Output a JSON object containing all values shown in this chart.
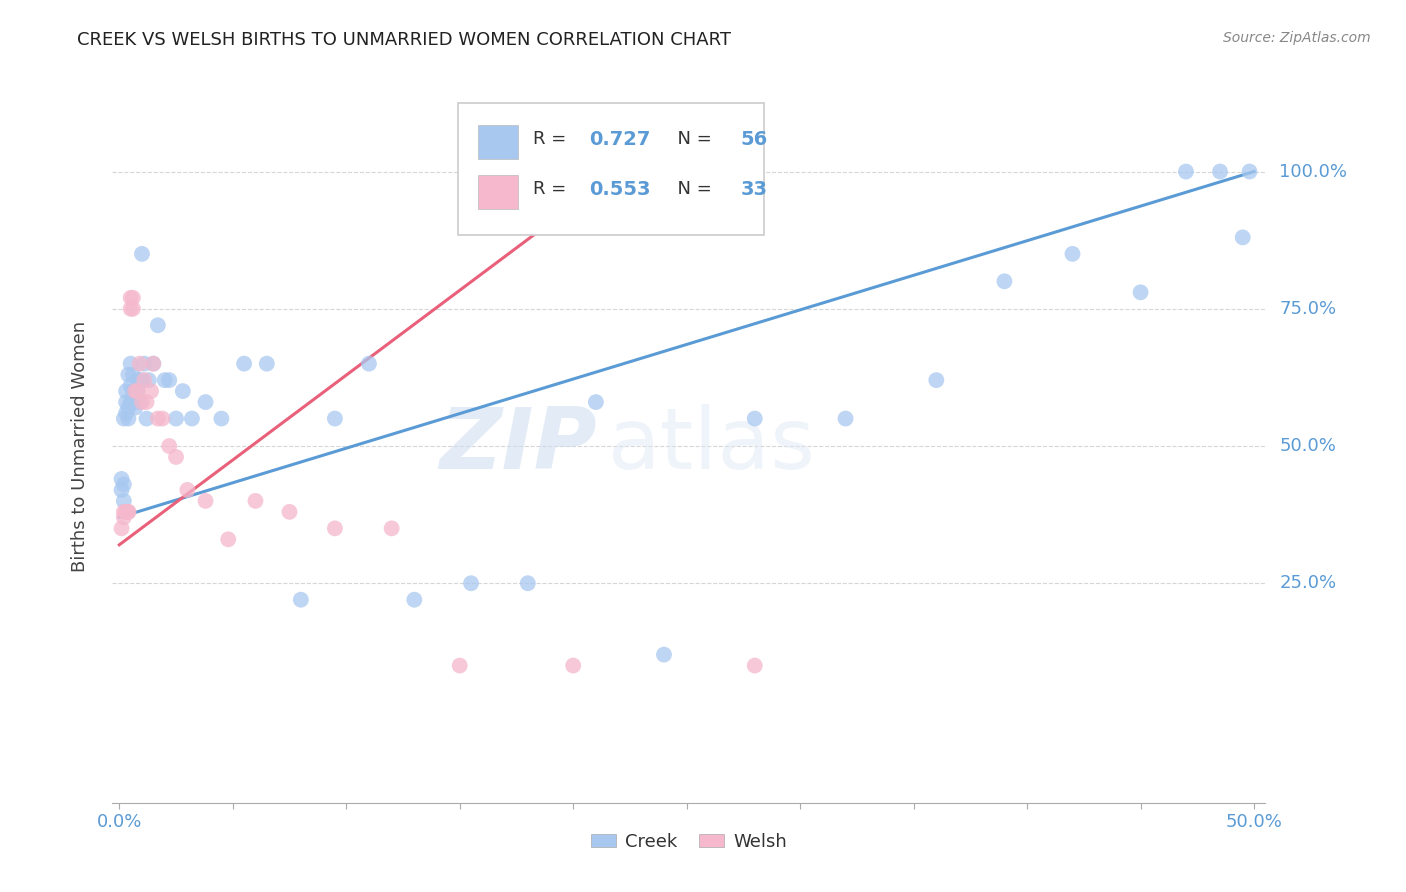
{
  "title": "CREEK VS WELSH BIRTHS TO UNMARRIED WOMEN CORRELATION CHART",
  "source": "Source: ZipAtlas.com",
  "ylabel": "Births to Unmarried Women",
  "creek_color": "#a8c8f0",
  "welsh_color": "#f5b8cc",
  "creek_line_color": "#5b9bd5",
  "welsh_line_color": "#e8607a",
  "creek_R": 0.727,
  "creek_N": 56,
  "welsh_R": 0.553,
  "welsh_N": 33,
  "watermark_zip": "ZIP",
  "watermark_atlas": "atlas",
  "ytick_labels": [
    "25.0%",
    "50.0%",
    "75.0%",
    "100.0%"
  ],
  "ytick_vals": [
    0.25,
    0.5,
    0.75,
    1.0
  ],
  "xlim": [
    0.0,
    0.5
  ],
  "ylim": [
    -0.15,
    1.15
  ],
  "creek_x": [
    0.001,
    0.001,
    0.002,
    0.002,
    0.002,
    0.003,
    0.003,
    0.003,
    0.004,
    0.004,
    0.004,
    0.005,
    0.005,
    0.005,
    0.006,
    0.006,
    0.006,
    0.007,
    0.007,
    0.008,
    0.008,
    0.009,
    0.01,
    0.01,
    0.011,
    0.012,
    0.013,
    0.015,
    0.017,
    0.02,
    0.022,
    0.025,
    0.028,
    0.032,
    0.038,
    0.045,
    0.055,
    0.065,
    0.08,
    0.095,
    0.11,
    0.13,
    0.155,
    0.18,
    0.21,
    0.24,
    0.28,
    0.32,
    0.36,
    0.39,
    0.42,
    0.45,
    0.47,
    0.485,
    0.495,
    0.498
  ],
  "creek_y": [
    0.42,
    0.44,
    0.4,
    0.43,
    0.55,
    0.58,
    0.56,
    0.6,
    0.57,
    0.55,
    0.63,
    0.61,
    0.58,
    0.65,
    0.58,
    0.6,
    0.63,
    0.57,
    0.6,
    0.6,
    0.62,
    0.58,
    0.85,
    0.62,
    0.65,
    0.55,
    0.62,
    0.65,
    0.72,
    0.62,
    0.62,
    0.55,
    0.6,
    0.55,
    0.58,
    0.55,
    0.65,
    0.65,
    0.22,
    0.55,
    0.65,
    0.22,
    0.25,
    0.25,
    0.58,
    0.12,
    0.55,
    0.55,
    0.62,
    0.8,
    0.85,
    0.78,
    1.0,
    1.0,
    0.88,
    1.0
  ],
  "welsh_x": [
    0.001,
    0.002,
    0.002,
    0.003,
    0.003,
    0.004,
    0.004,
    0.005,
    0.005,
    0.006,
    0.006,
    0.007,
    0.008,
    0.009,
    0.01,
    0.011,
    0.012,
    0.014,
    0.015,
    0.017,
    0.019,
    0.022,
    0.025,
    0.03,
    0.038,
    0.048,
    0.06,
    0.075,
    0.095,
    0.12,
    0.15,
    0.2,
    0.28
  ],
  "welsh_y": [
    0.35,
    0.37,
    0.38,
    0.38,
    0.38,
    0.38,
    0.38,
    0.77,
    0.75,
    0.77,
    0.75,
    0.6,
    0.6,
    0.65,
    0.58,
    0.62,
    0.58,
    0.6,
    0.65,
    0.55,
    0.55,
    0.5,
    0.48,
    0.42,
    0.4,
    0.33,
    0.4,
    0.38,
    0.35,
    0.35,
    0.1,
    0.1,
    0.1
  ],
  "creek_line_x": [
    0.0,
    0.5
  ],
  "creek_line_y": [
    0.37,
    1.0
  ],
  "welsh_line_x": [
    0.0,
    0.22
  ],
  "welsh_line_y": [
    0.32,
    1.0
  ]
}
